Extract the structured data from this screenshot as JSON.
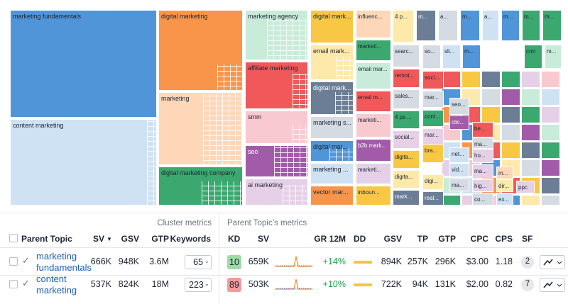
{
  "treemap": {
    "tiles": [
      "marketing fundamentals",
      "content marketing",
      "digital marketing",
      "marketing",
      "digital marketing company",
      "marketing agency",
      "affiliate marketing",
      "smm",
      "seo",
      "ai marketing",
      "digital mark...",
      "email mark...",
      "digital mark...",
      "marketing s...",
      "digital mar...",
      "marketing ...",
      "vector mar...",
      "influenc...",
      "marketi...",
      "email mar...",
      "email m...",
      "marketi...",
      "b2b mark...",
      "marketi...",
      "inboun...",
      "4 p...",
      "searc...",
      "remot...",
      "sales...",
      "4 ps ...",
      "social...",
      "digita...",
      "digita...",
      "mark...",
      "m...",
      "a...",
      "m...",
      "a...",
      "m...",
      "m...",
      "m...",
      "so...",
      "sli...",
      "m...",
      "crm",
      "m...",
      "soci...",
      "mar...",
      "cont...",
      "mar...",
      "bra...",
      "digi...",
      "real...",
      "seo...",
      "clic...",
      "net...",
      "vid...",
      "ma...",
      "be...",
      "ma...",
      "ho...",
      "ma...",
      "hig...",
      "co...",
      "m...",
      "dir...",
      "ppc",
      "ex..."
    ]
  },
  "table": {
    "group_headers": [
      "Cluster metrics",
      "Parent Topic’s metrics"
    ],
    "columns": [
      "Parent Topic",
      "SV",
      "GSV",
      "GTP",
      "Keywords",
      "KD",
      "SV",
      "GR 12M",
      "DD",
      "GSV",
      "TP",
      "GTP",
      "CPC",
      "CPS",
      "SF"
    ],
    "rows": [
      [
        "marketing fundamentals",
        "666K",
        "948K",
        "3.6M",
        "65",
        "10",
        "659K",
        "+14%",
        "894K",
        "257K",
        "296K",
        "$3.00",
        "1.18",
        "2"
      ],
      [
        "content marketing",
        "537K",
        "824K",
        "18M",
        "223",
        "89",
        "503K",
        "+10%",
        "722K",
        "94K",
        "131K",
        "$2.00",
        "0.82",
        "7"
      ]
    ]
  }
}
